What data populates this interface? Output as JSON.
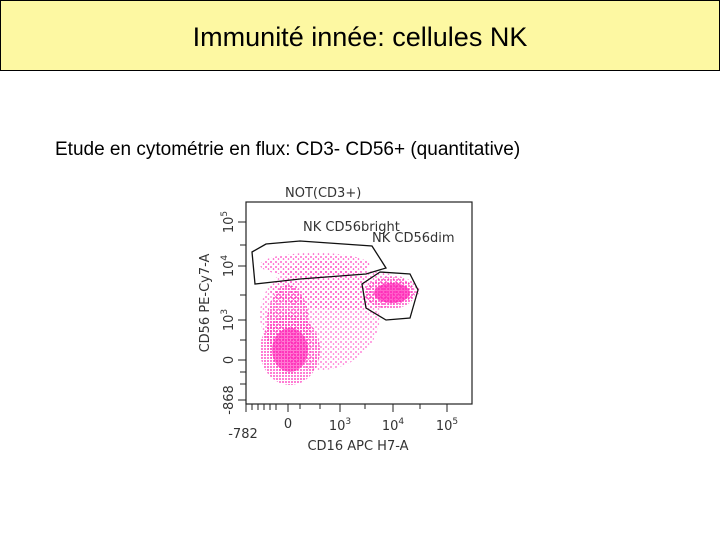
{
  "header": {
    "title": "Immunité innée: cellules NK"
  },
  "subtitle": "Etude en cytométrie en flux:  CD3- CD56+ (quantitative)",
  "plot": {
    "title": "NOT(CD3+)",
    "gates": [
      "NK CD56bright",
      "NK CD56dim"
    ],
    "y_axis": {
      "label": "CD56 PE-Cy7-A",
      "ticks": [
        {
          "base": "-868"
        },
        {
          "base": "0"
        },
        {
          "base": "10",
          "exp": "3"
        },
        {
          "base": "10",
          "exp": "4"
        },
        {
          "base": "10",
          "exp": "5"
        }
      ]
    },
    "x_axis": {
      "label": "CD16 APC H7-A",
      "ticks": [
        {
          "base": "-782"
        },
        {
          "base": "0"
        },
        {
          "base": "10",
          "exp": "3"
        },
        {
          "base": "10",
          "exp": "4"
        },
        {
          "base": "10",
          "exp": "5"
        }
      ]
    }
  }
}
